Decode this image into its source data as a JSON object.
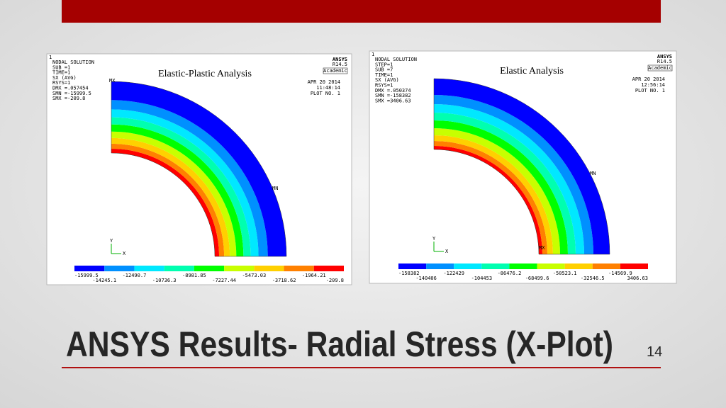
{
  "slide": {
    "title": "ANSYS Results- Radial Stress (X-Plot)",
    "page_number": "14",
    "panels": [
      {
        "caption": "Elastic-Plastic Analysis",
        "window_number": "1",
        "info": [
          "NODAL SOLUTION",
          "SUB =1",
          "TIME=1",
          "SX       (AVG)",
          "RSYS=1",
          "DMX =.057454",
          "SMN =-15999.5",
          "SMX =-209.8"
        ],
        "brand": "ANSYS",
        "version": "R14.5",
        "license": "Academic",
        "date": "APR 20 2014",
        "time": "11:48:14",
        "plot": "PLOT NO.   1",
        "max_marker": "MX",
        "min_marker": "MN",
        "axis_y": "Y",
        "axis_x": "X",
        "legend": [
          "-15999.5",
          "-14245.1",
          "-12490.7",
          "-10736.3",
          "-8981.85",
          "-7227.44",
          "-5473.03",
          "-3718.62",
          "-1964.21",
          "-209.8"
        ]
      },
      {
        "caption": "Elastic Analysis",
        "window_number": "1",
        "info": [
          "NODAL SOLUTION",
          "STEP=1",
          "SUB =7",
          "TIME=1",
          "SX       (AVG)",
          "RSYS=1",
          "DMX =.050374",
          "SMN =-158382",
          "SMX =3406.63"
        ],
        "brand": "ANSYS",
        "version": "R14.5",
        "license": "Academic",
        "date": "APR 20 2014",
        "time": "12:56:14",
        "plot": "PLOT NO.   1",
        "max_marker": "MX",
        "min_marker": "MN",
        "axis_y": "Y",
        "axis_x": "X",
        "legend": [
          "-158382",
          "-140406",
          "-122429",
          "-104453",
          "-86476.2",
          "-68499.6",
          "-50523.1",
          "-32546.5",
          "-14569.9",
          "3406.63"
        ]
      }
    ]
  }
}
